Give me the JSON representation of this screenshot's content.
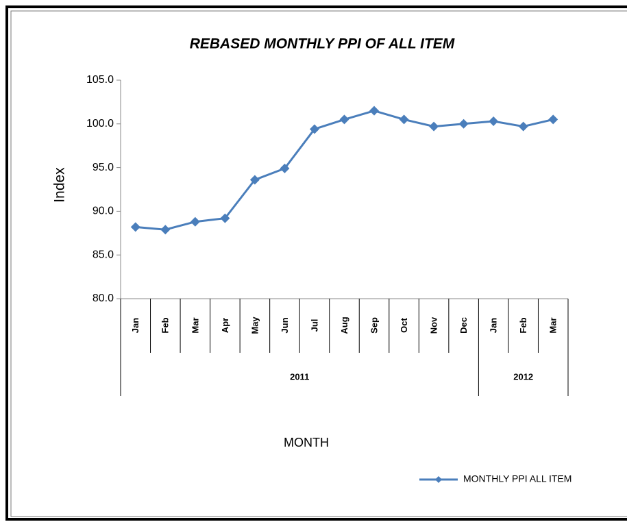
{
  "chart_data": {
    "type": "line",
    "title": "REBASED MONTHLY PPI  OF ALL ITEM",
    "y_label": "Index",
    "x_label": "MONTH",
    "categories": [
      "Jan",
      "Feb",
      "Mar",
      "Apr",
      "May",
      "Jun",
      "Jul",
      "Aug",
      "Sep",
      "Oct",
      "Nov",
      "Dec",
      "Jan",
      "Feb",
      "Mar"
    ],
    "years": [
      "2011",
      "2011",
      "2011",
      "2011",
      "2011",
      "2011",
      "2011",
      "2011",
      "2011",
      "2011",
      "2011",
      "2011",
      "2012",
      "2012",
      "2012"
    ],
    "series": [
      {
        "name": "MONTHLY PPI ALL ITEM",
        "color": "#4a7ebb",
        "values": [
          88.2,
          87.9,
          88.8,
          89.2,
          93.6,
          94.9,
          99.4,
          100.5,
          101.5,
          100.5,
          99.7,
          100.0,
          100.3,
          99.7,
          100.5
        ]
      }
    ],
    "ylim": [
      80,
      105
    ],
    "yticks": [
      {
        "value": 80,
        "label": "80.0"
      },
      {
        "value": 85,
        "label": "85.0"
      },
      {
        "value": 90,
        "label": "90.0"
      },
      {
        "value": 95,
        "label": "95.0"
      },
      {
        "value": 100,
        "label": "100.0"
      },
      {
        "value": 105,
        "label": "105.0"
      }
    ],
    "legend": "bottom-right"
  }
}
